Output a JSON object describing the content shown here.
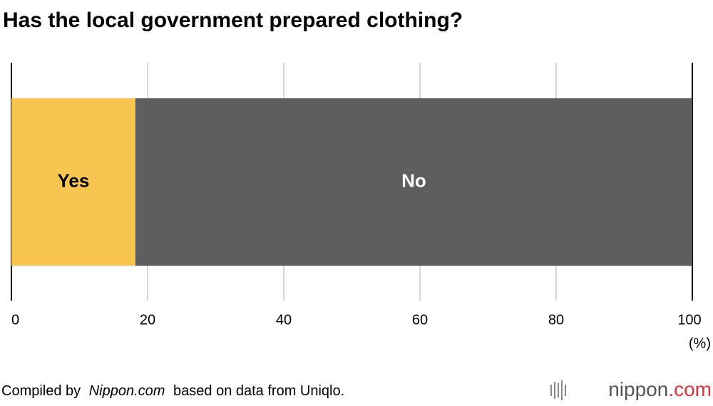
{
  "chart_data": {
    "type": "stacked_bar",
    "title": "Has the local government prepared clothing?",
    "series": [
      {
        "name": "Yes",
        "color": "#f8c551",
        "label_color": "#000000",
        "values": [
          18.2
        ]
      },
      {
        "name": "No",
        "color": "#5e5e5e",
        "label_color": "#ffffff",
        "values": [
          81.8
        ]
      }
    ],
    "xlim": [
      0,
      100
    ],
    "xticks": [
      0,
      20,
      40,
      60,
      80,
      100
    ],
    "x_unit": "(%)",
    "grid": true,
    "source": {
      "prefix": "Compiled by",
      "emphasis": "Nippon.com",
      "suffix": "based on data from Uniqlo."
    },
    "logo": {
      "name": "nippon",
      "suffix": ".com"
    }
  }
}
